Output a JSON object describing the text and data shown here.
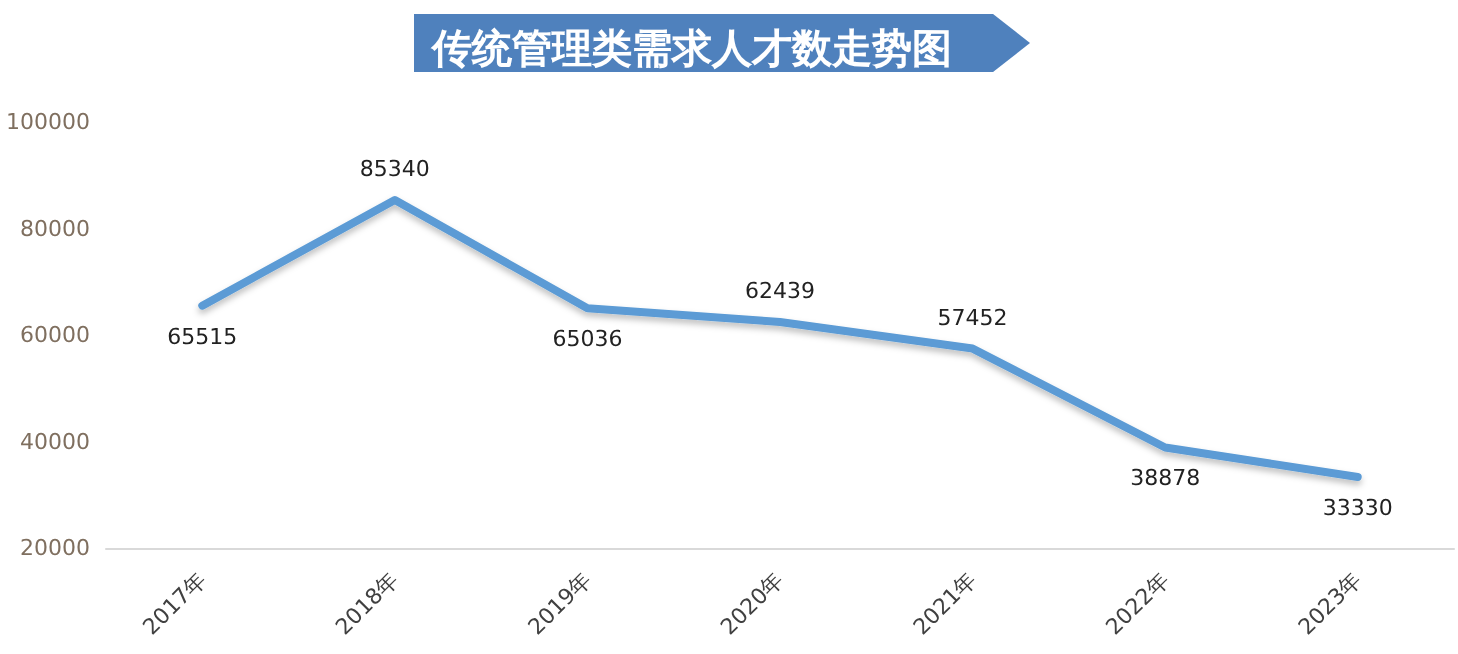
{
  "chart_data": {
    "type": "line",
    "title": "传统管理类需求人才数走势图",
    "categories": [
      "2017年",
      "2018年",
      "2019年",
      "2020年",
      "2021年",
      "2022年",
      "2023年"
    ],
    "series": [
      {
        "color": "#5b9bd5",
        "values": [
          65515,
          85340,
          65036,
          62439,
          57452,
          38878,
          33330
        ]
      }
    ],
    "ylim": [
      20000,
      100000
    ],
    "yticks": [
      20000,
      40000,
      60000,
      80000,
      100000
    ],
    "data_labels": true,
    "grid": false,
    "marker": "none",
    "line_style": "solid"
  }
}
